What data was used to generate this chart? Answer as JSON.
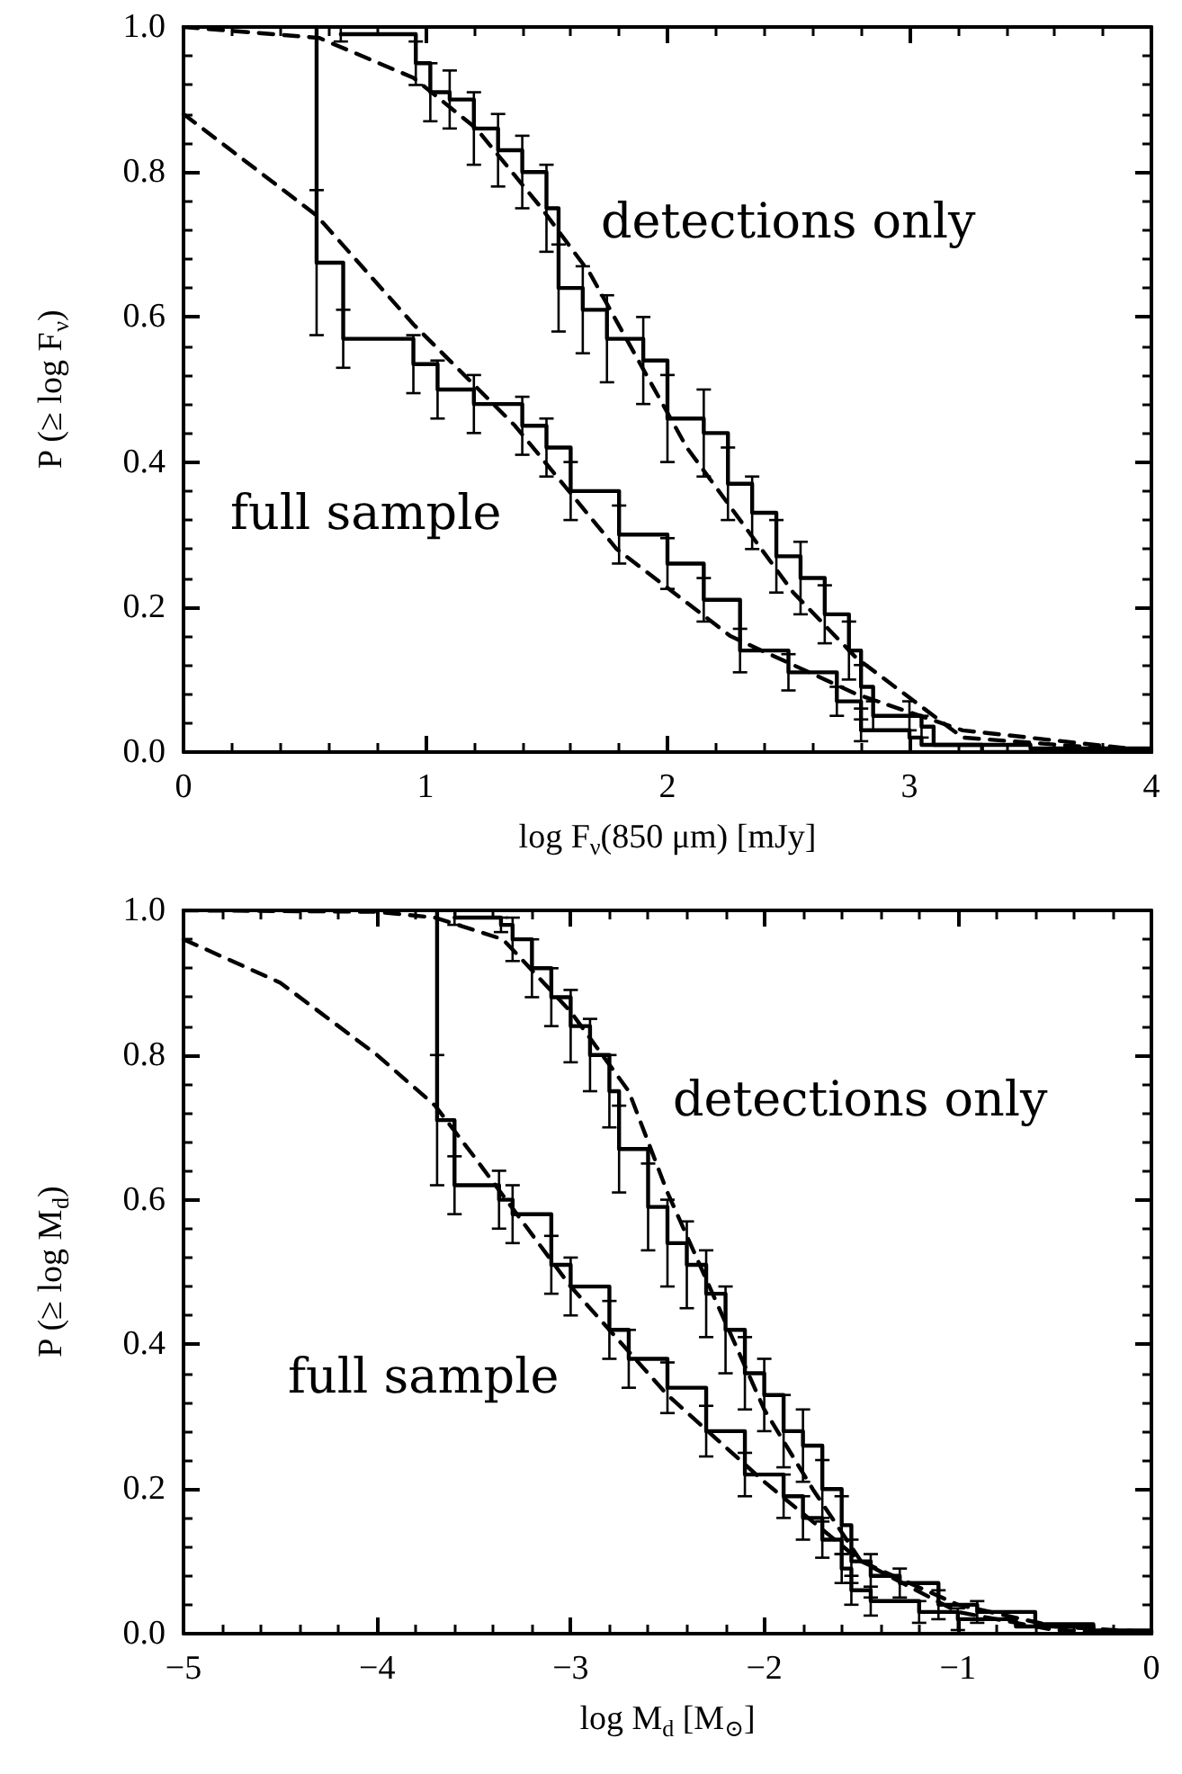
{
  "chart_data": [
    {
      "type": "step",
      "xlabel": "log F$_{ν}$(850 μm) [mJy]",
      "ylabel": "P (≥ log F$_{ν}$)",
      "xlim": [
        0,
        4
      ],
      "xticks": [
        0,
        1,
        2,
        3,
        4
      ],
      "ylim": [
        0,
        1
      ],
      "yticks": [
        {
          "value": 0,
          "label": "0.0"
        },
        {
          "value": 0.2,
          "label": "0.2"
        },
        {
          "value": 0.4,
          "label": "0.4"
        },
        {
          "value": 0.6,
          "label": "0.6"
        },
        {
          "value": 0.8,
          "label": "0.8"
        },
        {
          "value": 1,
          "label": "1.0"
        }
      ],
      "grid": false,
      "legend": false,
      "marker": "none",
      "series": [
        {
          "name": "full sample",
          "color": "#000000",
          "line_style": "solid",
          "x": [
            0.55,
            0.55,
            0.66,
            0.95,
            1.05,
            1.2,
            1.4,
            1.5,
            1.6,
            1.8,
            2.0,
            2.15,
            2.3,
            2.5,
            2.7,
            2.8,
            3.0,
            3.05,
            3.5,
            4.0
          ],
          "values": [
            1.0,
            0.675,
            0.57,
            0.535,
            0.5,
            0.48,
            0.45,
            0.42,
            0.36,
            0.3,
            0.26,
            0.21,
            0.14,
            0.11,
            0.07,
            0.03,
            0.02,
            0.01,
            0.005,
            0.005
          ],
          "errors": [
            null,
            0.1,
            0.04,
            0.04,
            0.04,
            0.04,
            0.04,
            0.04,
            0.04,
            0.04,
            0.035,
            0.03,
            0.03,
            0.025,
            0.02,
            0.015,
            null,
            null,
            null,
            null
          ]
        },
        {
          "name": "detections only",
          "color": "#000000",
          "line_style": "solid",
          "x": [
            0.65,
            0.96,
            1.02,
            1.1,
            1.2,
            1.3,
            1.4,
            1.5,
            1.55,
            1.65,
            1.75,
            1.9,
            2.0,
            2.15,
            2.25,
            2.35,
            2.45,
            2.55,
            2.65,
            2.75,
            2.8,
            2.85,
            3.0,
            3.05,
            3.1,
            3.3,
            4.0
          ],
          "values": [
            0.99,
            0.95,
            0.91,
            0.9,
            0.86,
            0.83,
            0.8,
            0.75,
            0.64,
            0.61,
            0.57,
            0.54,
            0.46,
            0.44,
            0.37,
            0.33,
            0.27,
            0.24,
            0.19,
            0.14,
            0.09,
            0.05,
            0.05,
            0.035,
            0.01,
            0.0,
            0.0
          ],
          "errors": [
            0.01,
            0.03,
            0.04,
            0.04,
            0.05,
            0.05,
            0.05,
            0.06,
            0.06,
            0.06,
            0.06,
            0.06,
            0.06,
            0.06,
            0.05,
            0.05,
            0.05,
            0.05,
            0.04,
            0.04,
            0.03,
            0.02,
            0.02,
            0.015,
            null,
            null,
            null
          ]
        },
        {
          "type": "line",
          "color": "#000000",
          "line_style": "dashed",
          "x": [
            0,
            0.55,
            0.95,
            1.37,
            1.79,
            2.26,
            2.78,
            3.22,
            3.93,
            4.0
          ],
          "values": [
            0.88,
            0.74,
            0.59,
            0.45,
            0.28,
            0.16,
            0.08,
            0.03,
            0.004,
            0.003
          ]
        },
        {
          "type": "line",
          "color": "#000000",
          "line_style": "dashed",
          "x": [
            0,
            0.56,
            0.95,
            1.21,
            1.48,
            1.68,
            2.08,
            2.52,
            2.78,
            3.22,
            3.93,
            4.0
          ],
          "values": [
            1.0,
            0.985,
            0.93,
            0.86,
            0.75,
            0.66,
            0.42,
            0.22,
            0.13,
            0.02,
            0.002,
            0.002
          ]
        }
      ]
    },
    {
      "type": "step",
      "xlabel": "log M$_{d}$ [M$_{⊙}$]",
      "ylabel": "P (≥ log M$_{d}$)",
      "xlim": [
        -5,
        0
      ],
      "xticks": [
        {
          "value": -5,
          "label": "−5"
        },
        {
          "value": -4,
          "label": "−4"
        },
        {
          "value": -3,
          "label": "−3"
        },
        {
          "value": -2,
          "label": "−2"
        },
        {
          "value": -1,
          "label": "−1"
        },
        0
      ],
      "ylim": [
        0,
        1
      ],
      "yticks": [
        {
          "value": 0,
          "label": "0.0"
        },
        {
          "value": 0.2,
          "label": "0.2"
        },
        {
          "value": 0.4,
          "label": "0.4"
        },
        {
          "value": 0.6,
          "label": "0.6"
        },
        {
          "value": 0.8,
          "label": "0.8"
        },
        {
          "value": 1,
          "label": "1.0"
        }
      ],
      "grid": false,
      "marker": "none",
      "series": [
        {
          "name": "full sample",
          "color": "#000000",
          "line_style": "solid",
          "x": [
            -3.69,
            -3.69,
            -3.6,
            -3.37,
            -3.3,
            -3.1,
            -3.0,
            -2.8,
            -2.7,
            -2.5,
            -2.3,
            -2.1,
            -1.9,
            -1.8,
            -1.7,
            -1.6,
            -1.55,
            -1.45,
            -1.2,
            -1.0,
            -0.7,
            -0.3,
            0
          ],
          "values": [
            1.0,
            0.71,
            0.62,
            0.6,
            0.58,
            0.51,
            0.48,
            0.42,
            0.38,
            0.34,
            0.28,
            0.22,
            0.19,
            0.16,
            0.13,
            0.09,
            0.06,
            0.045,
            0.03,
            0.02,
            0.01,
            0.004,
            0.004
          ],
          "errors": [
            null,
            0.09,
            0.04,
            0.04,
            0.04,
            0.04,
            0.04,
            0.04,
            0.04,
            0.035,
            0.035,
            0.03,
            0.03,
            0.03,
            0.025,
            0.02,
            0.02,
            0.02,
            0.015,
            0.015,
            null,
            null,
            null
          ]
        },
        {
          "name": "detections only",
          "color": "#000000",
          "line_style": "solid",
          "x": [
            -3.6,
            -3.36,
            -3.3,
            -3.2,
            -3.1,
            -3.0,
            -2.9,
            -2.8,
            -2.75,
            -2.6,
            -2.5,
            -2.4,
            -2.3,
            -2.2,
            -2.1,
            -2.0,
            -1.9,
            -1.8,
            -1.7,
            -1.6,
            -1.55,
            -1.45,
            -1.3,
            -1.1,
            -0.9,
            -0.6,
            -0.3,
            0
          ],
          "values": [
            0.99,
            0.98,
            0.96,
            0.92,
            0.88,
            0.84,
            0.8,
            0.75,
            0.67,
            0.59,
            0.54,
            0.51,
            0.47,
            0.42,
            0.36,
            0.33,
            0.28,
            0.26,
            0.2,
            0.15,
            0.1,
            0.08,
            0.07,
            0.04,
            0.03,
            0.013,
            0.004,
            0.0
          ],
          "errors": [
            0.01,
            0.01,
            0.03,
            0.04,
            0.04,
            0.05,
            0.05,
            0.05,
            0.06,
            0.06,
            0.06,
            0.06,
            0.06,
            0.06,
            0.05,
            0.05,
            0.05,
            0.05,
            0.04,
            0.04,
            0.03,
            0.03,
            0.02,
            0.02,
            0.015,
            null,
            null,
            null
          ]
        },
        {
          "type": "line",
          "color": "#000000",
          "line_style": "dashed",
          "x": [
            -5,
            -4.5,
            -4.0,
            -3.7,
            -3.5,
            -3.0,
            -2.5,
            -2.0,
            -1.5,
            -1.0,
            -0.5,
            0
          ],
          "values": [
            0.96,
            0.9,
            0.8,
            0.73,
            0.66,
            0.48,
            0.33,
            0.21,
            0.1,
            0.04,
            0.01,
            0.002
          ]
        },
        {
          "type": "line",
          "color": "#000000",
          "line_style": "dashed",
          "x": [
            -5,
            -4.0,
            -3.7,
            -3.35,
            -3.0,
            -2.7,
            -2.5,
            -2.0,
            -1.75,
            -1.5,
            -1.0,
            -0.5,
            0
          ],
          "values": [
            1.0,
            0.998,
            0.99,
            0.96,
            0.86,
            0.75,
            0.61,
            0.31,
            0.2,
            0.1,
            0.03,
            0.005,
            0.0
          ]
        }
      ]
    }
  ]
}
